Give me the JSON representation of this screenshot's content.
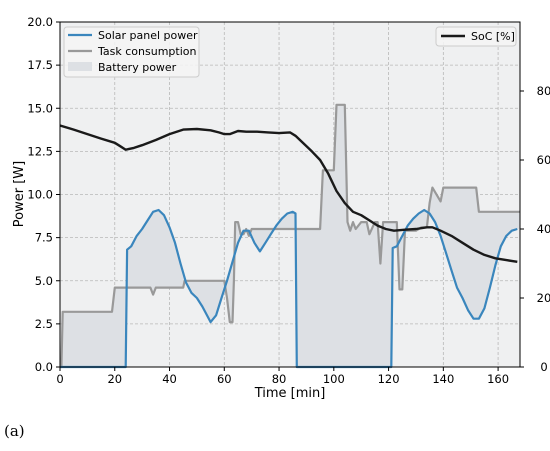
{
  "caption": "(a)",
  "chart_data": {
    "type": "line",
    "xlabel": "Time [min]",
    "ylabel": "Power [W]",
    "y2label": "SoC [%]",
    "xlim": [
      0,
      168
    ],
    "ylim": [
      0,
      20
    ],
    "y2lim": [
      0,
      100
    ],
    "x_ticks": [
      "0",
      "20",
      "40",
      "60",
      "80",
      "100",
      "120",
      "140",
      "160"
    ],
    "y_ticks": [
      "0.0",
      "2.5",
      "5.0",
      "7.5",
      "10.0",
      "12.5",
      "15.0",
      "17.5",
      "20.0"
    ],
    "y2_ticks": [
      "0",
      "20",
      "40",
      "60",
      "80"
    ],
    "grid": true,
    "legend_left": [
      "Solar panel power",
      "Task consumption",
      "Battery power"
    ],
    "legend_right": [
      "SoC [%]"
    ],
    "legend_placement": [
      "top-left",
      "top-right"
    ],
    "colors": {
      "solar": "#3a86bd",
      "task": "#999999",
      "battery_fill": "#dde0e4",
      "soc": "#1a1a1a",
      "background": "#eff0f1"
    },
    "series": [
      {
        "name": "Solar panel power",
        "axis": "left",
        "points": [
          [
            0,
            0
          ],
          [
            24,
            0
          ],
          [
            24.5,
            6.8
          ],
          [
            26,
            7.0
          ],
          [
            28,
            7.6
          ],
          [
            30,
            8.0
          ],
          [
            32,
            8.5
          ],
          [
            34,
            9.0
          ],
          [
            36,
            9.1
          ],
          [
            38,
            8.8
          ],
          [
            40,
            8.1
          ],
          [
            42,
            7.2
          ],
          [
            44,
            6.0
          ],
          [
            46,
            4.9
          ],
          [
            48,
            4.3
          ],
          [
            50,
            4.0
          ],
          [
            52,
            3.5
          ],
          [
            54,
            2.9
          ],
          [
            55,
            2.6
          ],
          [
            57,
            3.0
          ],
          [
            59,
            4.0
          ],
          [
            61,
            5.0
          ],
          [
            63,
            6.1
          ],
          [
            65,
            7.2
          ],
          [
            67,
            7.9
          ],
          [
            69,
            7.9
          ],
          [
            71,
            7.2
          ],
          [
            73,
            6.7
          ],
          [
            75,
            7.2
          ],
          [
            77,
            7.7
          ],
          [
            79,
            8.2
          ],
          [
            81,
            8.6
          ],
          [
            83,
            8.9
          ],
          [
            85,
            9.0
          ],
          [
            86,
            8.9
          ],
          [
            86.5,
            0
          ],
          [
            121,
            0
          ],
          [
            121.5,
            6.9
          ],
          [
            123,
            7.0
          ],
          [
            125,
            7.6
          ],
          [
            127,
            8.2
          ],
          [
            129,
            8.6
          ],
          [
            131,
            8.9
          ],
          [
            133,
            9.1
          ],
          [
            135,
            8.9
          ],
          [
            137,
            8.4
          ],
          [
            139,
            7.6
          ],
          [
            141,
            6.6
          ],
          [
            143,
            5.6
          ],
          [
            145,
            4.6
          ],
          [
            147,
            4.0
          ],
          [
            149,
            3.3
          ],
          [
            151,
            2.8
          ],
          [
            153,
            2.8
          ],
          [
            155,
            3.4
          ],
          [
            157,
            4.6
          ],
          [
            159,
            5.9
          ],
          [
            161,
            7.0
          ],
          [
            163,
            7.6
          ],
          [
            165,
            7.9
          ],
          [
            167,
            8.0
          ]
        ]
      },
      {
        "name": "Task consumption",
        "axis": "left",
        "points": [
          [
            0,
            0
          ],
          [
            0.5,
            0
          ],
          [
            1,
            3.2
          ],
          [
            19,
            3.2
          ],
          [
            20,
            4.6
          ],
          [
            33,
            4.6
          ],
          [
            34,
            4.2
          ],
          [
            35,
            4.6
          ],
          [
            45,
            4.6
          ],
          [
            45.5,
            5.0
          ],
          [
            60,
            5.0
          ],
          [
            61,
            4.0
          ],
          [
            62,
            2.6
          ],
          [
            63,
            2.6
          ],
          [
            63.5,
            5.0
          ],
          [
            64,
            8.4
          ],
          [
            65,
            8.4
          ],
          [
            66,
            7.7
          ],
          [
            67,
            7.7
          ],
          [
            68,
            8.0
          ],
          [
            69,
            7.6
          ],
          [
            70,
            8.0
          ],
          [
            79,
            8.0
          ],
          [
            80,
            8.0
          ],
          [
            95,
            8.0
          ],
          [
            96,
            11.4
          ],
          [
            99,
            11.4
          ],
          [
            100,
            11.4
          ],
          [
            101,
            15.2
          ],
          [
            104,
            15.2
          ],
          [
            105,
            8.4
          ],
          [
            106,
            7.9
          ],
          [
            107,
            8.4
          ],
          [
            108,
            8.0
          ],
          [
            110,
            8.4
          ],
          [
            112,
            8.4
          ],
          [
            113,
            7.7
          ],
          [
            115,
            8.4
          ],
          [
            116,
            8.4
          ],
          [
            117,
            6.0
          ],
          [
            118,
            8.4
          ],
          [
            122,
            8.4
          ],
          [
            123,
            8.4
          ],
          [
            124,
            4.5
          ],
          [
            125,
            4.5
          ],
          [
            126,
            7.9
          ],
          [
            128,
            7.9
          ],
          [
            130,
            7.9
          ],
          [
            132,
            8.1
          ],
          [
            134,
            8.1
          ],
          [
            135,
            9.5
          ],
          [
            136,
            10.4
          ],
          [
            139,
            9.6
          ],
          [
            140,
            10.4
          ],
          [
            152,
            10.4
          ],
          [
            153,
            9.0
          ],
          [
            168,
            9.0
          ]
        ]
      },
      {
        "name": "SoC [%]",
        "axis": "right",
        "points": [
          [
            0,
            70
          ],
          [
            5,
            68.8
          ],
          [
            10,
            67.5
          ],
          [
            15,
            66.2
          ],
          [
            20,
            65
          ],
          [
            22,
            64
          ],
          [
            24,
            63
          ],
          [
            27,
            63.5
          ],
          [
            30,
            64.3
          ],
          [
            35,
            65.8
          ],
          [
            40,
            67.5
          ],
          [
            45,
            68.8
          ],
          [
            50,
            69
          ],
          [
            55,
            68.6
          ],
          [
            58,
            68
          ],
          [
            60,
            67.5
          ],
          [
            62,
            67.5
          ],
          [
            65,
            68.4
          ],
          [
            68,
            68.2
          ],
          [
            72,
            68.2
          ],
          [
            76,
            68
          ],
          [
            80,
            67.8
          ],
          [
            84,
            68
          ],
          [
            86,
            67
          ],
          [
            88,
            65.5
          ],
          [
            92,
            62.5
          ],
          [
            95,
            60
          ],
          [
            98,
            56
          ],
          [
            101,
            51
          ],
          [
            104,
            47.5
          ],
          [
            107,
            45
          ],
          [
            110,
            44
          ],
          [
            113,
            42.5
          ],
          [
            116,
            41
          ],
          [
            119,
            40
          ],
          [
            122,
            39.5
          ],
          [
            126,
            39.8
          ],
          [
            130,
            40
          ],
          [
            134,
            40.5
          ],
          [
            136,
            40.5
          ],
          [
            139,
            39.5
          ],
          [
            143,
            38
          ],
          [
            147,
            36
          ],
          [
            151,
            34
          ],
          [
            155,
            32.5
          ],
          [
            159,
            31.5
          ],
          [
            163,
            31
          ],
          [
            167,
            30.5
          ]
        ]
      }
    ]
  }
}
